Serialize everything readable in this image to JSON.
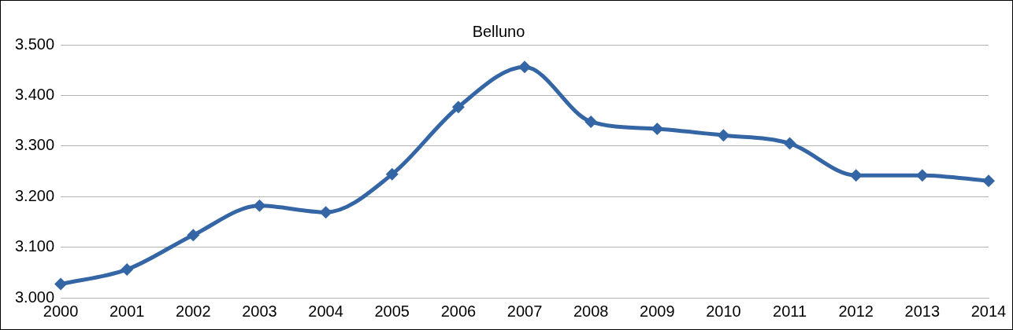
{
  "chart_data": {
    "type": "line",
    "title": "Belluno",
    "categories": [
      "2000",
      "2001",
      "2002",
      "2003",
      "2004",
      "2005",
      "2006",
      "2007",
      "2008",
      "2009",
      "2010",
      "2011",
      "2012",
      "2013",
      "2014"
    ],
    "series": [
      {
        "color": "#3465a4",
        "values": [
          3.027,
          3.056,
          3.124,
          3.182,
          3.169,
          3.244,
          3.377,
          3.456,
          3.348,
          3.334,
          3.321,
          3.305,
          3.242,
          3.242,
          3.231
        ]
      }
    ],
    "ylim": [
      3.0,
      3.5
    ],
    "yticks": [
      {
        "value": 3.0,
        "label": "3.000"
      },
      {
        "value": 3.1,
        "label": "3.100"
      },
      {
        "value": 3.2,
        "label": "3.200"
      },
      {
        "value": 3.3,
        "label": "3.300"
      },
      {
        "value": 3.4,
        "label": "3.400"
      },
      {
        "value": 3.5,
        "label": "3.500"
      }
    ],
    "grid": "y",
    "legend": false,
    "marker": "diamond",
    "line_style": "solid"
  }
}
